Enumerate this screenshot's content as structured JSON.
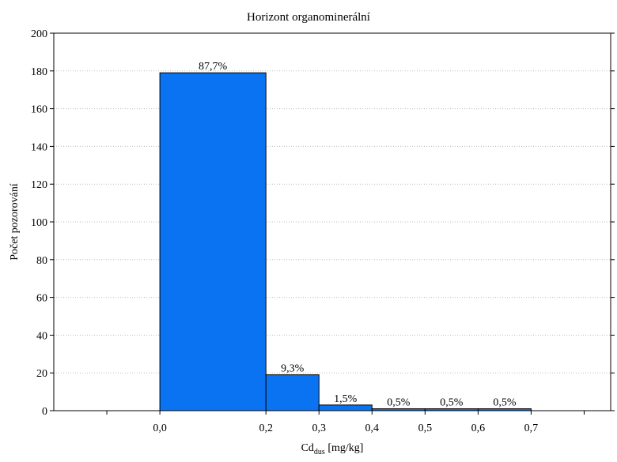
{
  "chart_data": {
    "type": "bar",
    "title": "Horizont organominerální",
    "xlabel": {
      "main": "Cd",
      "sub": "dus",
      "suffix": " [mg/kg]"
    },
    "ylabel": "Počet pozorování",
    "ylim": [
      0,
      200
    ],
    "xlim": [
      -0.2,
      0.85
    ],
    "y_ticks": [
      0,
      20,
      40,
      60,
      80,
      100,
      120,
      140,
      160,
      180,
      200
    ],
    "y_tick_labels": [
      "0",
      "20",
      "40",
      "60",
      "80",
      "100",
      "120",
      "140",
      "160",
      "180",
      "200"
    ],
    "x_ticks": [
      0.0,
      0.2,
      0.3,
      0.4,
      0.5,
      0.6,
      0.7
    ],
    "x_tick_labels": [
      "0,0",
      "0,2",
      "0,3",
      "0,4",
      "0,5",
      "0,6",
      "0,7"
    ],
    "grid": true,
    "bars": [
      {
        "x_start": 0.0,
        "x_end": 0.2,
        "value": 179,
        "label": "87,7%"
      },
      {
        "x_start": 0.2,
        "x_end": 0.3,
        "value": 19,
        "label": "9,3%"
      },
      {
        "x_start": 0.3,
        "x_end": 0.4,
        "value": 3,
        "label": "1,5%"
      },
      {
        "x_start": 0.4,
        "x_end": 0.5,
        "value": 1,
        "label": "0,5%"
      },
      {
        "x_start": 0.5,
        "x_end": 0.6,
        "value": 1,
        "label": "0,5%"
      },
      {
        "x_start": 0.6,
        "x_end": 0.7,
        "value": 1,
        "label": "0,5%"
      }
    ],
    "colors": {
      "bar_fill": "#0a73f2",
      "bar_stroke": "#000000",
      "grid": "#bfbfbf"
    }
  }
}
